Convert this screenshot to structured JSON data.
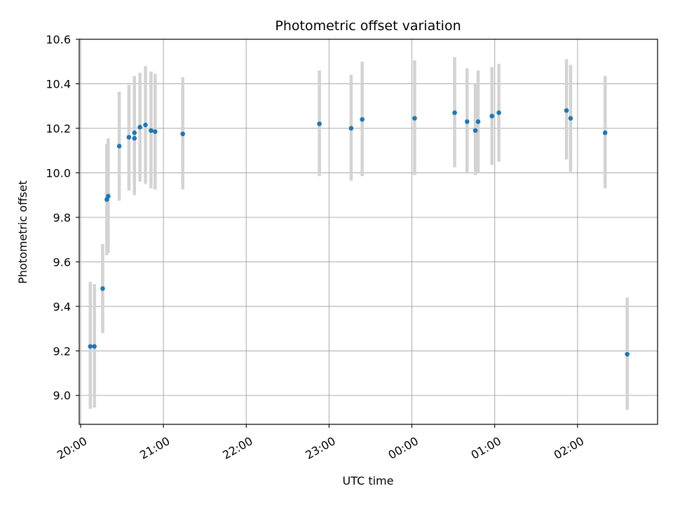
{
  "chart_data": {
    "type": "scatter",
    "title": "Photometric offset variation",
    "xlabel": "UTC time",
    "ylabel": "Photometric offset",
    "x_ticks": [
      "20:00",
      "21:00",
      "22:00",
      "23:00",
      "00:00",
      "01:00",
      "02:00"
    ],
    "y_ticks": [
      "9.0",
      "9.2",
      "9.4",
      "9.6",
      "9.8",
      "10.0",
      "10.2",
      "10.4",
      "10.6"
    ],
    "ylim": [
      8.87,
      10.6
    ],
    "xlim": [
      "19:59",
      "02:58"
    ],
    "grid": true,
    "marker_color": "#1f77b4",
    "errorbar_color": "#d3d3d3",
    "points": [
      {
        "time": "20:07",
        "y": 9.22,
        "err_low": 8.94,
        "err_high": 9.51
      },
      {
        "time": "20:10",
        "y": 9.22,
        "err_low": 8.945,
        "err_high": 9.5
      },
      {
        "time": "20:16",
        "y": 9.48,
        "err_low": 9.28,
        "err_high": 9.68
      },
      {
        "time": "20:19",
        "y": 9.88,
        "err_low": 9.63,
        "err_high": 10.13
      },
      {
        "time": "20:20",
        "y": 9.895,
        "err_low": 9.64,
        "err_high": 10.155
      },
      {
        "time": "20:28",
        "y": 10.12,
        "err_low": 9.875,
        "err_high": 10.365
      },
      {
        "time": "20:35",
        "y": 10.16,
        "err_low": 9.92,
        "err_high": 10.395
      },
      {
        "time": "20:39",
        "y": 10.18,
        "err_low": 9.925,
        "err_high": 10.435
      },
      {
        "time": "20:39",
        "y": 10.155,
        "err_low": 9.9,
        "err_high": 10.41
      },
      {
        "time": "20:43",
        "y": 10.205,
        "err_low": 9.96,
        "err_high": 10.45
      },
      {
        "time": "20:47",
        "y": 10.215,
        "err_low": 9.95,
        "err_high": 10.48
      },
      {
        "time": "20:51",
        "y": 10.19,
        "err_low": 9.93,
        "err_high": 10.455
      },
      {
        "time": "20:54",
        "y": 10.185,
        "err_low": 9.925,
        "err_high": 10.445
      },
      {
        "time": "21:14",
        "y": 10.175,
        "err_low": 9.925,
        "err_high": 10.43
      },
      {
        "time": "22:53",
        "y": 10.22,
        "err_low": 9.985,
        "err_high": 10.46
      },
      {
        "time": "23:16",
        "y": 10.2,
        "err_low": 9.965,
        "err_high": 10.44
      },
      {
        "time": "23:24",
        "y": 10.24,
        "err_low": 9.985,
        "err_high": 10.5
      },
      {
        "time": "00:02",
        "y": 10.245,
        "err_low": 9.99,
        "err_high": 10.505
      },
      {
        "time": "00:31",
        "y": 10.27,
        "err_low": 10.025,
        "err_high": 10.52
      },
      {
        "time": "00:40",
        "y": 10.23,
        "err_low": 10.0,
        "err_high": 10.47
      },
      {
        "time": "00:46",
        "y": 10.19,
        "err_low": 9.99,
        "err_high": 10.4
      },
      {
        "time": "00:48",
        "y": 10.23,
        "err_low": 10.0,
        "err_high": 10.46
      },
      {
        "time": "00:58",
        "y": 10.255,
        "err_low": 10.035,
        "err_high": 10.475
      },
      {
        "time": "01:03",
        "y": 10.27,
        "err_low": 10.05,
        "err_high": 10.49
      },
      {
        "time": "01:52",
        "y": 10.28,
        "err_low": 10.06,
        "err_high": 10.51
      },
      {
        "time": "01:55",
        "y": 10.245,
        "err_low": 10.005,
        "err_high": 10.485
      },
      {
        "time": "02:20",
        "y": 10.18,
        "err_low": 9.93,
        "err_high": 10.435
      },
      {
        "time": "02:36",
        "y": 9.185,
        "err_low": 8.935,
        "err_high": 9.44
      }
    ]
  }
}
